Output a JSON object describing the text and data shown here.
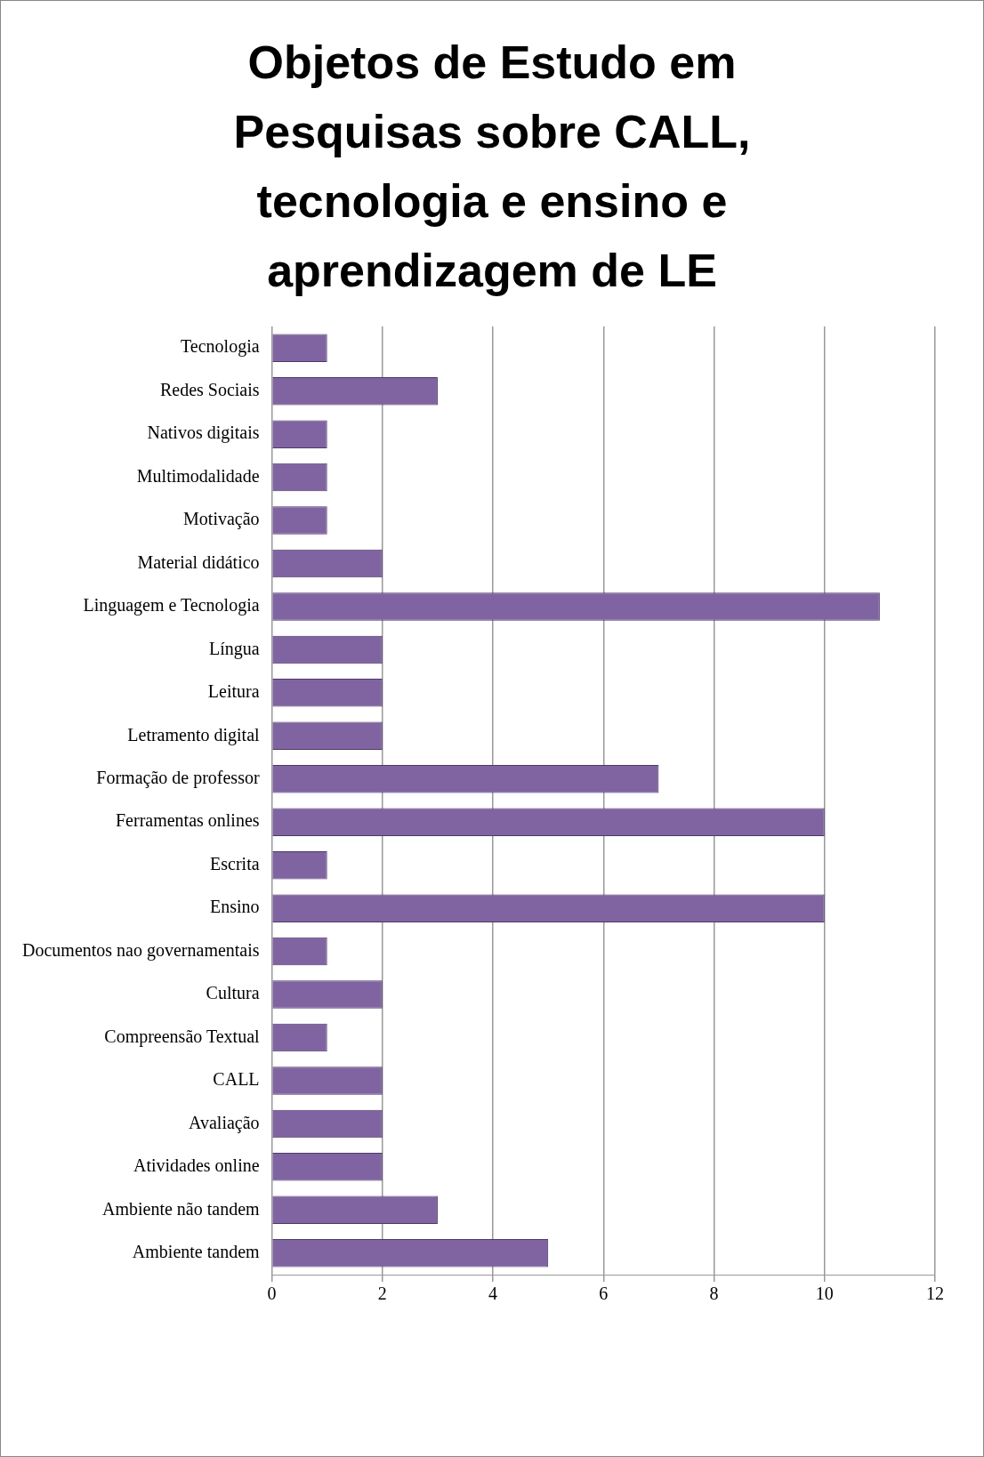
{
  "chart_data": {
    "type": "bar",
    "orientation": "horizontal",
    "title": "Objetos de Estudo em Pesquisas sobre CALL, tecnologia e ensino e aprendizagem de LE",
    "categories": [
      "Tecnologia",
      "Redes Sociais",
      "Nativos digitais",
      "Multimodalidade",
      "Motivação",
      "Material didático",
      "Linguagem e Tecnologia",
      "Língua",
      "Leitura",
      "Letramento digital",
      "Formação de professor",
      "Ferramentas onlines",
      "Escrita",
      "Ensino",
      "Documentos nao governamentais",
      "Cultura",
      "Compreensão Textual",
      "CALL",
      "Avaliação",
      "Atividades online",
      "Ambiente não tandem",
      "Ambiente tandem"
    ],
    "values": [
      1,
      3,
      1,
      1,
      1,
      2,
      11,
      2,
      2,
      2,
      7,
      10,
      1,
      10,
      1,
      2,
      1,
      2,
      2,
      2,
      3,
      5
    ],
    "color": "#8064a2",
    "xlim": [
      0,
      12
    ],
    "xticks": [
      0,
      2,
      4,
      6,
      8,
      10,
      12
    ],
    "grid": "x",
    "legend": false
  }
}
